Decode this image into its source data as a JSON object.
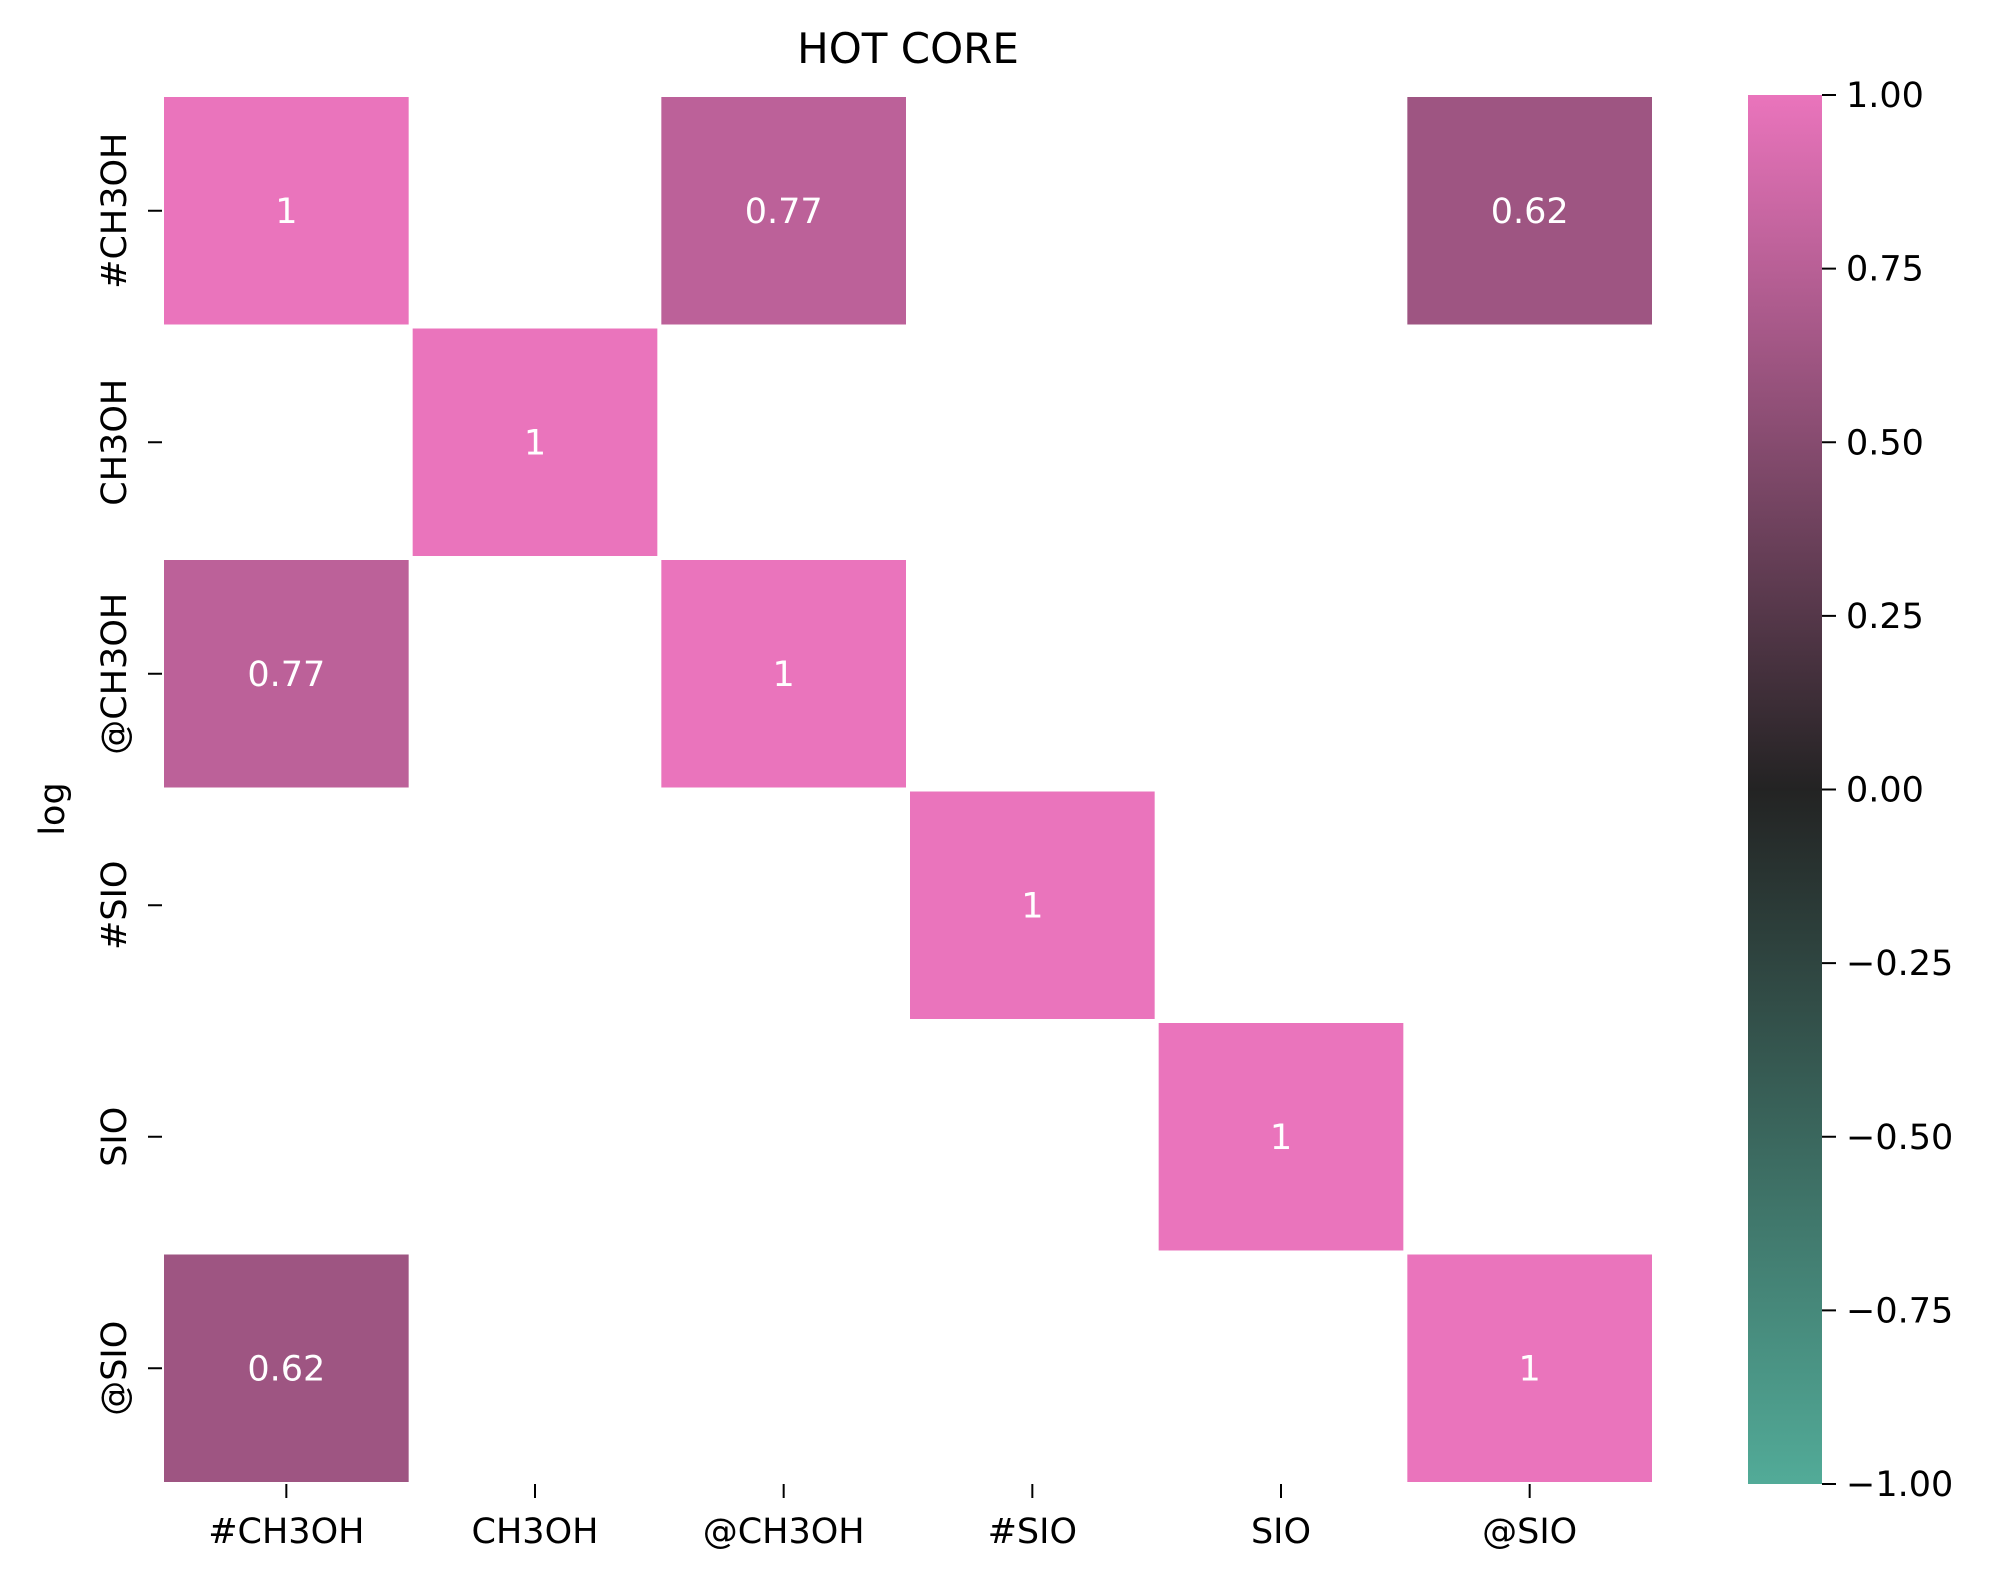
{
  "chart_data": {
    "type": "heatmap",
    "title": "HOT CORE",
    "xlabel": "",
    "ylabel": "log",
    "x_categories": [
      "#CH3OH",
      "CH3OH",
      "@CH3OH",
      "#SIO",
      "SIO",
      "@SIO"
    ],
    "y_categories": [
      "#CH3OH",
      "CH3OH",
      "@CH3OH",
      "#SIO",
      "SIO",
      "@SIO"
    ],
    "cells": [
      {
        "row": 0,
        "col": 0,
        "value": 1.0,
        "label": "1"
      },
      {
        "row": 0,
        "col": 2,
        "value": 0.77,
        "label": "0.77"
      },
      {
        "row": 0,
        "col": 5,
        "value": 0.62,
        "label": "0.62"
      },
      {
        "row": 1,
        "col": 1,
        "value": 1.0,
        "label": "1"
      },
      {
        "row": 2,
        "col": 0,
        "value": 0.77,
        "label": "0.77"
      },
      {
        "row": 2,
        "col": 2,
        "value": 1.0,
        "label": "1"
      },
      {
        "row": 3,
        "col": 3,
        "value": 1.0,
        "label": "1"
      },
      {
        "row": 4,
        "col": 4,
        "value": 1.0,
        "label": "1"
      },
      {
        "row": 5,
        "col": 0,
        "value": 0.62,
        "label": "0.62"
      },
      {
        "row": 5,
        "col": 5,
        "value": 1.0,
        "label": "1"
      }
    ],
    "colorbar": {
      "range": [
        -1.0,
        1.0
      ],
      "ticks": [
        1.0,
        0.75,
        0.5,
        0.25,
        0.0,
        -0.25,
        -0.5,
        -0.75,
        -1.0
      ],
      "tick_labels": [
        "1.00",
        "0.75",
        "0.50",
        "0.25",
        "0.00",
        "−0.25",
        "−0.50",
        "−0.75",
        "−1.00"
      ],
      "color_min": "#52ab98",
      "color_mid": "#232323",
      "color_max": "#ea74bc"
    },
    "cell_separator_color": "#ffffff",
    "grid": false
  }
}
